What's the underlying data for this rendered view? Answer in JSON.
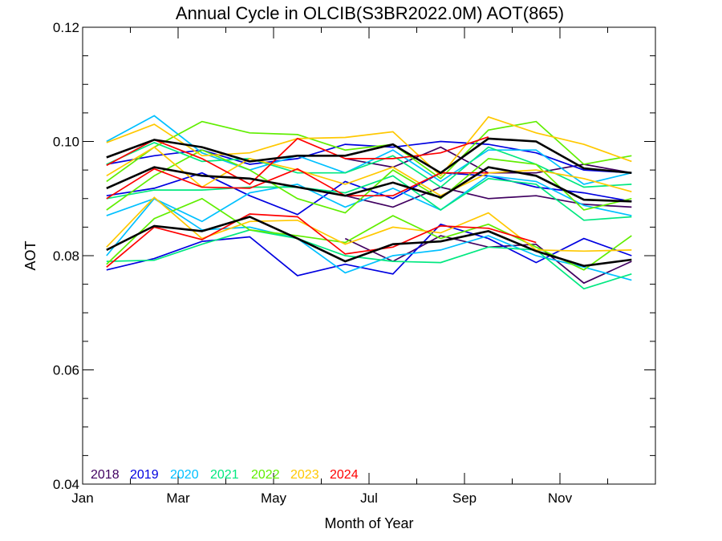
{
  "chart_data": {
    "type": "line",
    "title": "Annual Cycle in OLCIB(S3BR2022.0M) AOT(865)",
    "xlabel": "Month of Year",
    "ylabel": "AOT",
    "xlim": [
      0,
      12
    ],
    "ylim": [
      0.04,
      0.12
    ],
    "x_ticks": [
      {
        "value": 0,
        "label": "Jan"
      },
      {
        "value": 2,
        "label": "Mar"
      },
      {
        "value": 4,
        "label": "May"
      },
      {
        "value": 6,
        "label": "Jul"
      },
      {
        "value": 8,
        "label": "Sep"
      },
      {
        "value": 10,
        "label": "Nov"
      }
    ],
    "y_ticks": [
      {
        "value": 0.04,
        "label": "0.04"
      },
      {
        "value": 0.06,
        "label": "0.06"
      },
      {
        "value": 0.08,
        "label": "0.08"
      },
      {
        "value": 0.1,
        "label": "0.10"
      },
      {
        "value": 0.12,
        "label": "0.12"
      }
    ],
    "x_minor_step": 1,
    "y_minor_step": 0.005,
    "grid": false,
    "legend_position": "bottom-left",
    "months": [
      0.5,
      1.5,
      2.5,
      3.5,
      4.5,
      5.5,
      6.5,
      7.5,
      8.5,
      9.5,
      10.5,
      11.5
    ],
    "series": [
      {
        "name": "2018",
        "color": "#400060",
        "lines": [
          [
            null,
            null,
            null,
            null,
            null,
            0.0905,
            0.0885,
            0.092,
            0.09,
            0.0905,
            0.089,
            0.0885
          ],
          [
            null,
            null,
            null,
            null,
            null,
            0.083,
            0.079,
            0.0835,
            0.0815,
            0.082,
            0.0752,
            0.079
          ],
          [
            null,
            null,
            null,
            null,
            null,
            0.097,
            0.0955,
            0.099,
            0.0945,
            0.0945,
            0.096,
            0.0945
          ]
        ]
      },
      {
        "name": "2019",
        "color": "#0000e0",
        "lines": [
          [
            0.0905,
            0.0918,
            0.0945,
            0.0905,
            0.0872,
            0.093,
            0.09,
            0.0945,
            0.094,
            0.092,
            0.091,
            0.0895
          ],
          [
            0.0775,
            0.0795,
            0.0825,
            0.0833,
            0.0765,
            0.0785,
            0.0768,
            0.0855,
            0.083,
            0.0788,
            0.083,
            0.08
          ],
          [
            0.096,
            0.0975,
            0.0985,
            0.096,
            0.097,
            0.0995,
            0.099,
            0.1,
            0.0995,
            0.098,
            0.095,
            0.0945
          ]
        ]
      },
      {
        "name": "2020",
        "color": "#00c0ff",
        "lines": [
          [
            0.087,
            0.09,
            0.086,
            0.091,
            0.0925,
            0.0885,
            0.0918,
            0.088,
            0.094,
            0.093,
            0.0888,
            0.087
          ],
          [
            0.08,
            0.09,
            0.0845,
            0.085,
            0.083,
            0.077,
            0.08,
            0.081,
            0.0835,
            0.08,
            0.078,
            0.0757
          ],
          [
            0.1,
            0.1045,
            0.098,
            0.095,
            0.0975,
            0.0945,
            0.0985,
            0.093,
            0.0985,
            0.0985,
            0.0925,
            0.0945
          ]
        ]
      },
      {
        "name": "2021",
        "color": "#00e880",
        "lines": [
          [
            0.09,
            0.0915,
            0.0915,
            0.092,
            0.092,
            0.091,
            0.094,
            0.088,
            0.0935,
            0.0925,
            0.0862,
            0.0868
          ],
          [
            0.079,
            0.0792,
            0.082,
            0.0845,
            0.083,
            0.08,
            0.079,
            0.0788,
            0.0815,
            0.081,
            0.0742,
            0.0768
          ],
          [
            0.096,
            0.0998,
            0.0965,
            0.097,
            0.0945,
            0.0945,
            0.0975,
            0.092,
            0.099,
            0.096,
            0.092,
            0.0925
          ]
        ]
      },
      {
        "name": "2022",
        "color": "#60ee00",
        "lines": [
          [
            0.088,
            0.094,
            0.0985,
            0.095,
            0.09,
            0.0875,
            0.095,
            0.09,
            0.097,
            0.096,
            0.088,
            0.09
          ],
          [
            0.0785,
            0.0865,
            0.09,
            0.0845,
            0.0835,
            0.0823,
            0.087,
            0.083,
            0.0855,
            0.0815,
            0.0775,
            0.0835
          ],
          [
            0.093,
            0.099,
            0.1035,
            0.1015,
            0.1012,
            0.0985,
            0.0995,
            0.0935,
            0.102,
            0.1035,
            0.096,
            0.0975
          ]
        ]
      },
      {
        "name": "2023",
        "color": "#ffc800",
        "lines": [
          [
            0.094,
            0.099,
            0.092,
            0.097,
            0.095,
            0.0925,
            0.0955,
            0.0905,
            0.0945,
            0.095,
            0.0935,
            0.0912
          ],
          [
            0.0815,
            0.0902,
            0.083,
            0.086,
            0.0862,
            0.082,
            0.085,
            0.084,
            0.0875,
            0.081,
            0.0808,
            0.081
          ],
          [
            0.0998,
            0.103,
            0.0975,
            0.098,
            0.1005,
            0.1007,
            0.1017,
            0.094,
            0.1043,
            0.1015,
            0.0995,
            0.0965
          ]
        ]
      },
      {
        "name": "2024",
        "color": "#ff0000",
        "lines": [
          [
            0.09,
            0.0952,
            0.092,
            0.0918,
            0.0952,
            0.0905,
            0.0905,
            0.0945,
            0.0945,
            null,
            null,
            null
          ],
          [
            0.078,
            0.085,
            0.0828,
            0.0873,
            0.0868,
            0.0803,
            0.0815,
            0.0852,
            0.0848,
            0.0823,
            null,
            null
          ],
          [
            0.0958,
            0.1003,
            0.097,
            0.0925,
            0.1005,
            0.097,
            0.097,
            0.098,
            0.1008,
            null,
            null,
            null
          ]
        ]
      },
      {
        "name": "",
        "color": "#000000",
        "lines": [
          [
            0.0918,
            0.0955,
            0.094,
            0.0935,
            0.092,
            0.0905,
            0.0928,
            0.0902,
            0.0955,
            0.094,
            0.0898,
            0.0895
          ],
          [
            0.081,
            0.0852,
            0.0843,
            0.0868,
            0.083,
            0.079,
            0.082,
            0.0825,
            0.0843,
            0.0808,
            0.0782,
            0.0793
          ],
          [
            0.0972,
            0.1003,
            0.099,
            0.0965,
            0.0975,
            0.0975,
            0.0995,
            0.0945,
            0.1005,
            0.1,
            0.0953,
            0.0945
          ]
        ]
      }
    ]
  }
}
